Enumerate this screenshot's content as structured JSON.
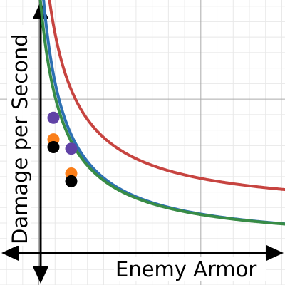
{
  "chart_data": {
    "type": "line",
    "xlabel": "Enemy Armor",
    "ylabel": "Damage per Second",
    "xlim": [
      -1.2,
      7.6
    ],
    "ylim": [
      -1.0,
      8.2
    ],
    "grid": true,
    "legend": "none",
    "series": [
      {
        "color": "#c74440",
        "formula_k": 6.4,
        "formula_c": 0.6,
        "formula_d": 1.3
      },
      {
        "color": "#2d70b3",
        "formula_k": 5.5,
        "formula_c": 0.55,
        "formula_d": 0.3
      },
      {
        "color": "#388c46",
        "formula_k": 5.5,
        "formula_c": 0.65,
        "formula_d": 0.3
      }
    ],
    "points": [
      {
        "x": 0.45,
        "y": 4.4,
        "color": "#6042a6"
      },
      {
        "x": 1.0,
        "y": 3.4,
        "color": "#6042a6"
      },
      {
        "x": 0.45,
        "y": 3.7,
        "color": "#fa7e19"
      },
      {
        "x": 1.0,
        "y": 2.6,
        "color": "#fa7e19"
      },
      {
        "x": 0.45,
        "y": 3.45,
        "color": "#000000"
      },
      {
        "x": 1.0,
        "y": 2.35,
        "color": "#000000"
      }
    ]
  }
}
